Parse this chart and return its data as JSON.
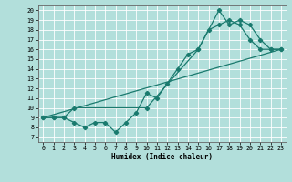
{
  "title": "",
  "xlabel": "Humidex (Indice chaleur)",
  "bg_color": "#b2dfdb",
  "grid_color": "#ffffff",
  "line_color": "#1a7a6e",
  "xlim": [
    -0.5,
    23.5
  ],
  "ylim": [
    6.5,
    20.5
  ],
  "yticks": [
    7,
    8,
    9,
    10,
    11,
    12,
    13,
    14,
    15,
    16,
    17,
    18,
    19,
    20
  ],
  "xticks": [
    0,
    1,
    2,
    3,
    4,
    5,
    6,
    7,
    8,
    9,
    10,
    11,
    12,
    13,
    14,
    15,
    16,
    17,
    18,
    19,
    20,
    21,
    22,
    23
  ],
  "line1_x": [
    0,
    1,
    2,
    3,
    4,
    5,
    6,
    7,
    8,
    9,
    10,
    11,
    12,
    13,
    14,
    15,
    16,
    17,
    18,
    19,
    20,
    21,
    22,
    23
  ],
  "line1_y": [
    9,
    9,
    9,
    8.5,
    8,
    8.5,
    8.5,
    7.5,
    8.5,
    9.5,
    11.5,
    11,
    12.5,
    14,
    15.5,
    16,
    18,
    18.5,
    19,
    18.5,
    17,
    16,
    16,
    16
  ],
  "line2_x": [
    0,
    1,
    2,
    3,
    10,
    15,
    17,
    18,
    19,
    20,
    21,
    22,
    23
  ],
  "line2_y": [
    9,
    9,
    9,
    10,
    10,
    16,
    20,
    18.5,
    19,
    18.5,
    17,
    16,
    16
  ],
  "line3_x": [
    0,
    23
  ],
  "line3_y": [
    9,
    16
  ]
}
